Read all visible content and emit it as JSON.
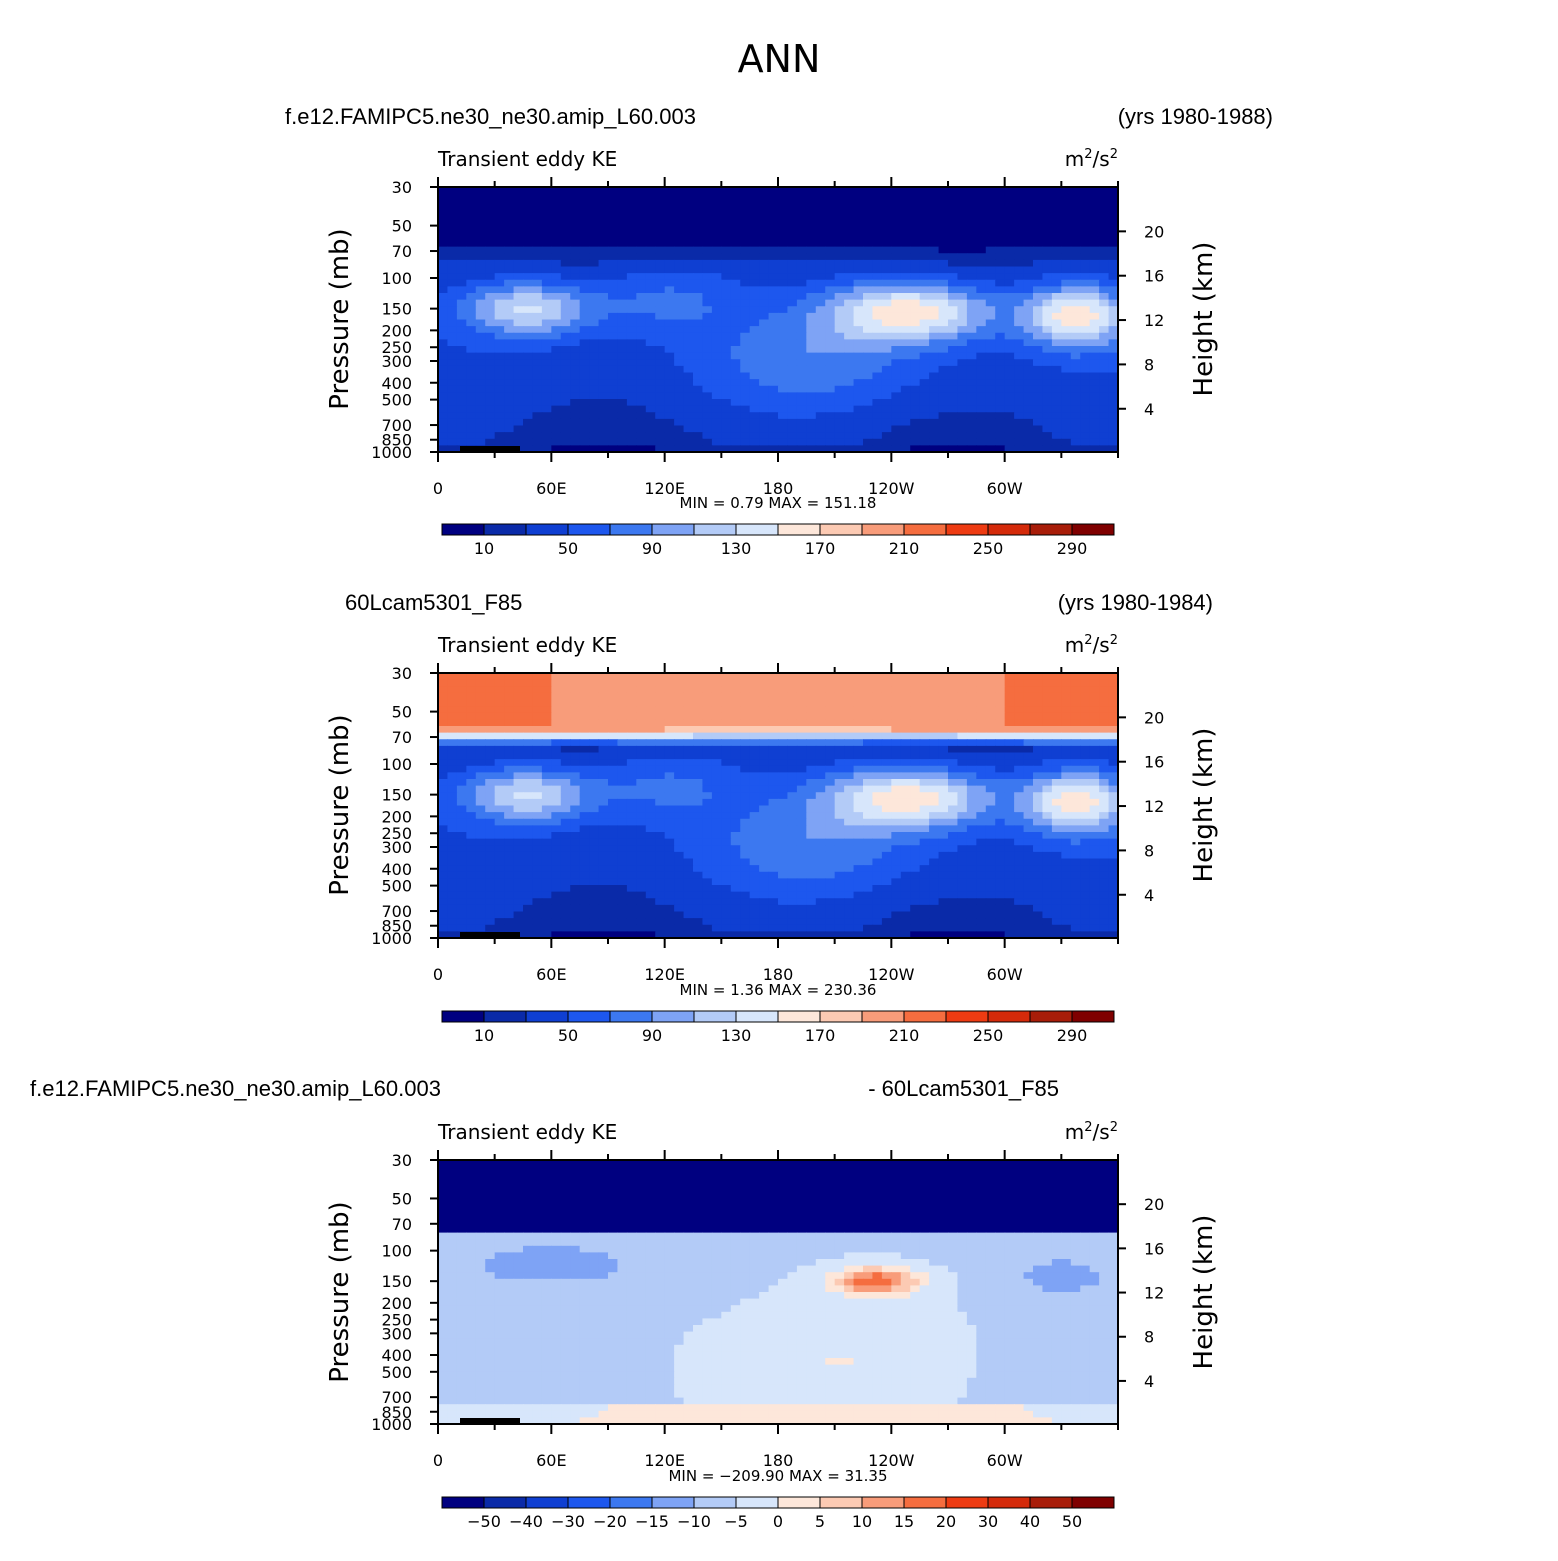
{
  "figure": {
    "title": "ANN"
  },
  "palettes": {
    "abs": [
      "#000080",
      "#0a2aa8",
      "#0f3fd2",
      "#1d57ee",
      "#3c78f0",
      "#7ea3f5",
      "#b3cbf7",
      "#d7e6fb",
      "#fde7da",
      "#fccab3",
      "#f89c7a",
      "#f56d3f",
      "#ee3b12",
      "#d42a0a",
      "#a81d09",
      "#7f0000"
    ],
    "diff": [
      "#000080",
      "#0a2aa8",
      "#0f3fd2",
      "#1d57ee",
      "#3c78f0",
      "#7ea3f5",
      "#b3cbf7",
      "#d7e6fb",
      "#fde7da",
      "#fccab3",
      "#f89c7a",
      "#f56d3f",
      "#ee3b12",
      "#d42a0a",
      "#a81d09",
      "#7f0000"
    ]
  },
  "chart_data": [
    {
      "type": "contour",
      "case_left": "f.e12.FAMIPC5.ne30_ne30.amip_L60.003",
      "case_right": "(yrs 1980-1988)",
      "title": "Transient eddy KE",
      "units_base": "m",
      "units_exp1": "2",
      "units_mid": "/s",
      "units_exp2": "2",
      "ylabel": "Pressure  (mb)",
      "ylabel_right": "Height  (km)",
      "pressure_ticks": [
        "30",
        "50",
        "70",
        "100",
        "150",
        "200",
        "250",
        "300",
        "400",
        "500",
        "700",
        "850",
        "1000"
      ],
      "pressure_values": [
        30,
        50,
        70,
        100,
        150,
        200,
        250,
        300,
        400,
        500,
        700,
        850,
        1000
      ],
      "height_ticks": [
        "20",
        "16",
        "12",
        "8",
        "4"
      ],
      "height_values": [
        20,
        16,
        12,
        8,
        4
      ],
      "x_ticks": [
        "0",
        "60E",
        "120E",
        "180",
        "120W",
        "60W"
      ],
      "x_values": [
        0,
        60,
        120,
        180,
        240,
        300
      ],
      "xlim": [
        0,
        360
      ],
      "stats": "MIN =    0.79   MAX =  151.18",
      "min": 0.79,
      "max": 151.18,
      "colorbar_labels": [
        "10",
        "50",
        "90",
        "130",
        "170",
        "210",
        "250",
        "290"
      ],
      "palette": "abs",
      "top_field": [
        2,
        2
      ]
    },
    {
      "type": "contour",
      "case_left": "60Lcam5301_F85",
      "case_right": "(yrs 1980-1984)",
      "title": "Transient eddy KE",
      "units_base": "m",
      "units_exp1": "2",
      "units_mid": "/s",
      "units_exp2": "2",
      "ylabel": "Pressure  (mb)",
      "ylabel_right": "Height  (km)",
      "pressure_ticks": [
        "30",
        "50",
        "70",
        "100",
        "150",
        "200",
        "250",
        "300",
        "400",
        "500",
        "700",
        "850",
        "1000"
      ],
      "pressure_values": [
        30,
        50,
        70,
        100,
        150,
        200,
        250,
        300,
        400,
        500,
        700,
        850,
        1000
      ],
      "height_ticks": [
        "20",
        "16",
        "12",
        "8",
        "4"
      ],
      "height_values": [
        20,
        16,
        12,
        8,
        4
      ],
      "x_ticks": [
        "0",
        "60E",
        "120E",
        "180",
        "120W",
        "60W"
      ],
      "x_values": [
        0,
        60,
        120,
        180,
        240,
        300
      ],
      "xlim": [
        0,
        360
      ],
      "stats": "MIN =    1.36   MAX =  230.36",
      "min": 1.36,
      "max": 230.36,
      "colorbar_labels": [
        "10",
        "50",
        "90",
        "130",
        "170",
        "210",
        "250",
        "290"
      ],
      "palette": "abs",
      "top_field": [
        220,
        230
      ]
    },
    {
      "type": "contour",
      "case_left": "f.e12.FAMIPC5.ne30_ne30.amip_L60.003",
      "case_right": "- 60Lcam5301_F85",
      "title": "Transient eddy KE",
      "units_base": "m",
      "units_exp1": "2",
      "units_mid": "/s",
      "units_exp2": "2",
      "ylabel": "Pressure  (mb)",
      "ylabel_right": "Height  (km)",
      "pressure_ticks": [
        "30",
        "50",
        "70",
        "100",
        "150",
        "200",
        "250",
        "300",
        "400",
        "500",
        "700",
        "850",
        "1000"
      ],
      "pressure_values": [
        30,
        50,
        70,
        100,
        150,
        200,
        250,
        300,
        400,
        500,
        700,
        850,
        1000
      ],
      "height_ticks": [
        "20",
        "16",
        "12",
        "8",
        "4"
      ],
      "height_values": [
        20,
        16,
        12,
        8,
        4
      ],
      "x_ticks": [
        "0",
        "60E",
        "120E",
        "180",
        "120W",
        "60W"
      ],
      "x_values": [
        0,
        60,
        120,
        180,
        240,
        300
      ],
      "xlim": [
        0,
        360
      ],
      "stats": "MIN = −209.90   MAX =   31.35",
      "min": -209.9,
      "max": 31.35,
      "colorbar_labels": [
        "−50",
        "−40",
        "−30",
        "−20",
        "−15",
        "−10",
        "−5",
        "0",
        "5",
        "10",
        "15",
        "20",
        "30",
        "40",
        "50"
      ],
      "palette": "diff",
      "top_field": [
        -210,
        -200
      ]
    }
  ]
}
